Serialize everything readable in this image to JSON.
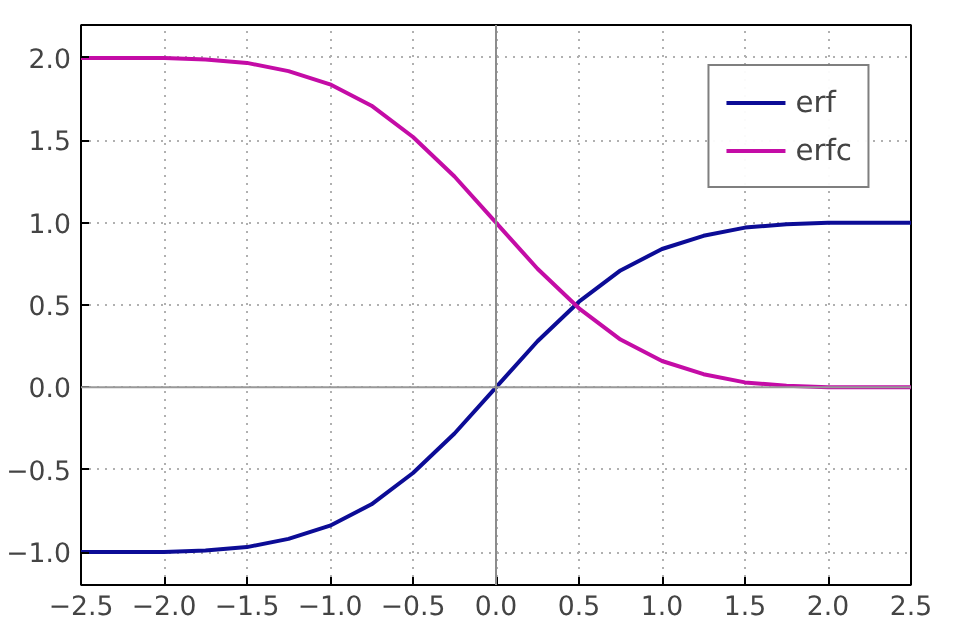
{
  "chart_data": {
    "type": "line",
    "x": [
      -2.5,
      -2.25,
      -2.0,
      -1.75,
      -1.5,
      -1.25,
      -1.0,
      -0.75,
      -0.5,
      -0.25,
      0,
      0.25,
      0.5,
      0.75,
      1.0,
      1.25,
      1.5,
      1.75,
      2.0,
      2.25,
      2.5
    ],
    "series": [
      {
        "name": "erf",
        "color": "#0c0c96",
        "values": [
          -1.0,
          -1.0,
          -1.0,
          -0.99,
          -0.97,
          -0.92,
          -0.84,
          -0.71,
          -0.52,
          -0.28,
          0,
          0.28,
          0.52,
          0.71,
          0.84,
          0.92,
          0.97,
          0.99,
          1.0,
          1.0,
          1.0
        ]
      },
      {
        "name": "erfc",
        "color": "#c40ca6",
        "values": [
          2.0,
          2.0,
          2.0,
          1.99,
          1.97,
          1.92,
          1.84,
          1.71,
          1.52,
          1.28,
          1.0,
          0.72,
          0.48,
          0.29,
          0.16,
          0.08,
          0.03,
          0.01,
          0.0,
          0.0,
          0.0
        ]
      }
    ],
    "xlim": [
      -2.5,
      2.5
    ],
    "xticks": [
      {
        "value": -2.5,
        "label": "−2.5"
      },
      {
        "value": -2.0,
        "label": "−2.0"
      },
      {
        "value": -1.5,
        "label": "−1.5"
      },
      {
        "value": -1.0,
        "label": "−1.0"
      },
      {
        "value": -0.5,
        "label": "−0.5"
      },
      "0.0",
      "0.5",
      "1.0",
      "1.5",
      "2.0",
      "2.5"
    ],
    "ylim": [
      -1.2,
      2.2
    ],
    "yticks": [
      {
        "value": -1.0,
        "label": "−1.0"
      },
      {
        "value": -0.5,
        "label": "−0.5"
      },
      {
        "value": 0,
        "label": "0.0"
      },
      {
        "value": 0.5,
        "label": "0.5"
      },
      {
        "value": 1.0,
        "label": "1.0"
      },
      {
        "value": 1.5,
        "label": "1.5"
      },
      {
        "value": 2.0,
        "label": "2.0"
      }
    ],
    "ref_lines": [
      {
        "axis": "y",
        "value": 0,
        "color": "#999999"
      },
      {
        "axis": "x",
        "value": 0,
        "color": "#8c8c8c"
      }
    ],
    "grid": true,
    "legend": "top right",
    "line_style": "solid",
    "marker": "none"
  }
}
